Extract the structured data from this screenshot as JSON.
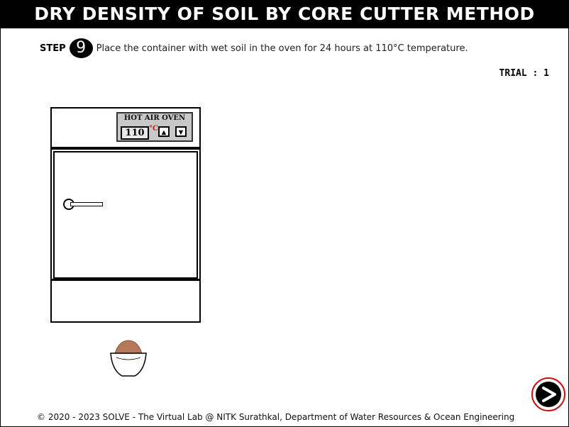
{
  "title": "DRY DENSITY OF SOIL BY CORE CUTTER METHOD",
  "step": {
    "label": "STEP",
    "number": "9",
    "instruction": "Place the container with wet soil in the oven for 24 hours at 110°C temperature."
  },
  "trial": "TRIAL : 1",
  "oven": {
    "label": "HOT AIR OVEN",
    "temperature": "110",
    "unit": "°C",
    "up_icon": "triangle-up-icon",
    "down_icon": "triangle-down-icon"
  },
  "container": {
    "icon": "soil-bowl-icon",
    "soil_color": "#b5785a"
  },
  "next_button": {
    "icon": "arrow-right-icon",
    "ring_color": "#d01010"
  },
  "footer": "© 2020 - 2023 SOLVE - The Virtual Lab @ NITK Surathkal, Department of Water Resources & Ocean Engineering"
}
